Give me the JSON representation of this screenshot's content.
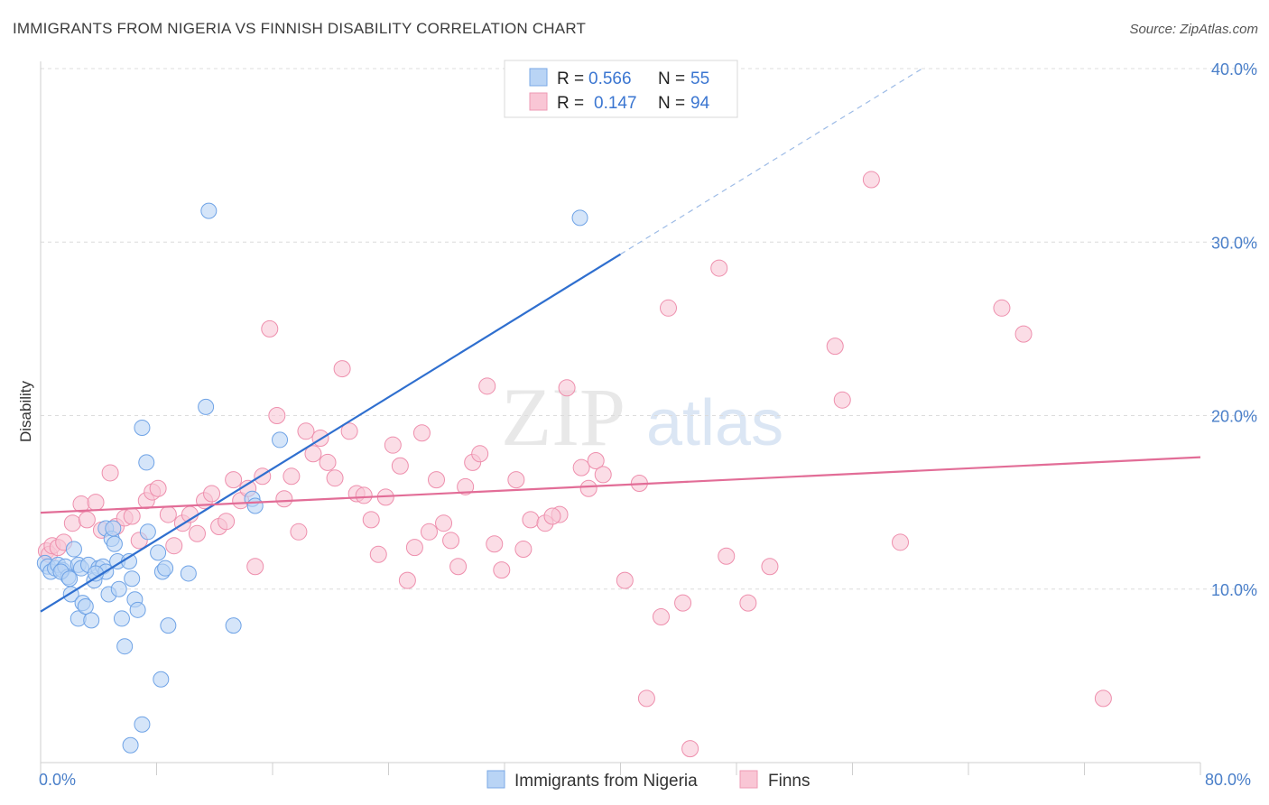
{
  "header": {
    "title": "IMMIGRANTS FROM NIGERIA VS FINNISH DISABILITY CORRELATION CHART",
    "source": "Source: ZipAtlas.com"
  },
  "watermark": {
    "part1": "ZIP",
    "part2": "atlas"
  },
  "legend": {
    "rows": [
      {
        "r_label": "R =",
        "r_value": "0.566",
        "n_label": "N =",
        "n_value": "55",
        "color": "#9ec3f0"
      },
      {
        "r_label": "R =",
        "r_value": "0.147",
        "n_label": "N =",
        "n_value": "94",
        "color": "#f7b8cb"
      }
    ]
  },
  "bottom_legend": [
    {
      "label": "Immigrants from Nigeria",
      "color": "#9ec3f0"
    },
    {
      "label": "Finns",
      "color": "#f7b8cb"
    }
  ],
  "chart_data": {
    "type": "scatter",
    "title": "IMMIGRANTS FROM NIGERIA VS FINNISH DISABILITY CORRELATION CHART",
    "xlabel": "",
    "ylabel": "Disability",
    "xlim": [
      0,
      80
    ],
    "ylim": [
      0,
      40
    ],
    "x_tick_labels": [
      "0.0%",
      "80.0%"
    ],
    "y_ticks": [
      10,
      20,
      30,
      40
    ],
    "y_tick_labels": [
      "10.0%",
      "20.0%",
      "30.0%",
      "40.0%"
    ],
    "grid": true,
    "series": [
      {
        "name": "Immigrants from Nigeria",
        "color": "#6fa3e6",
        "fill": "#b9d4f5",
        "trend": {
          "x0": 0,
          "y0": 8.7,
          "x1": 40,
          "y1": 29.3,
          "dash_to_x": 61,
          "dash_to_y": 40.1
        },
        "points": [
          [
            0.3,
            11.5
          ],
          [
            0.5,
            11.3
          ],
          [
            0.7,
            11.0
          ],
          [
            1.0,
            11.2
          ],
          [
            1.2,
            11.4
          ],
          [
            1.5,
            11.1
          ],
          [
            1.7,
            11.3
          ],
          [
            1.9,
            10.7
          ],
          [
            2.1,
            9.7
          ],
          [
            2.3,
            12.3
          ],
          [
            2.6,
            11.4
          ],
          [
            2.8,
            11.2
          ],
          [
            2.6,
            8.3
          ],
          [
            2.9,
            9.2
          ],
          [
            3.1,
            9.0
          ],
          [
            3.3,
            11.4
          ],
          [
            3.5,
            8.2
          ],
          [
            3.7,
            10.5
          ],
          [
            4.0,
            11.2
          ],
          [
            4.3,
            11.3
          ],
          [
            4.5,
            11.0
          ],
          [
            4.7,
            9.7
          ],
          [
            4.5,
            13.5
          ],
          [
            4.9,
            12.9
          ],
          [
            5.1,
            12.6
          ],
          [
            5.3,
            11.6
          ],
          [
            5.4,
            10.0
          ],
          [
            5.6,
            8.3
          ],
          [
            5.8,
            6.7
          ],
          [
            6.1,
            11.6
          ],
          [
            6.3,
            10.6
          ],
          [
            6.5,
            9.4
          ],
          [
            6.7,
            8.8
          ],
          [
            7.0,
            19.3
          ],
          [
            7.3,
            17.3
          ],
          [
            7.4,
            13.3
          ],
          [
            8.1,
            12.1
          ],
          [
            8.4,
            11.0
          ],
          [
            8.6,
            11.2
          ],
          [
            8.8,
            7.9
          ],
          [
            8.3,
            4.8
          ],
          [
            7.0,
            2.2
          ],
          [
            6.2,
            1.0
          ],
          [
            10.2,
            10.9
          ],
          [
            11.4,
            20.5
          ],
          [
            11.6,
            31.8
          ],
          [
            13.3,
            7.9
          ],
          [
            14.6,
            15.2
          ],
          [
            14.8,
            14.8
          ],
          [
            16.5,
            18.6
          ],
          [
            37.2,
            31.4
          ],
          [
            1.4,
            11.0
          ],
          [
            2.0,
            10.6
          ],
          [
            3.8,
            10.9
          ],
          [
            5.0,
            13.5
          ]
        ]
      },
      {
        "name": "Finns",
        "color": "#ee8fad",
        "fill": "#f9c6d5",
        "trend": {
          "x0": 0,
          "y0": 14.4,
          "x1": 80,
          "y1": 17.6
        },
        "points": [
          [
            0.4,
            12.2
          ],
          [
            0.6,
            12.0
          ],
          [
            0.8,
            12.5
          ],
          [
            1.2,
            12.4
          ],
          [
            1.6,
            12.7
          ],
          [
            2.2,
            13.8
          ],
          [
            2.8,
            14.9
          ],
          [
            3.2,
            14.0
          ],
          [
            3.8,
            15.0
          ],
          [
            4.2,
            13.4
          ],
          [
            4.8,
            16.7
          ],
          [
            5.2,
            13.6
          ],
          [
            5.8,
            14.1
          ],
          [
            6.3,
            14.2
          ],
          [
            6.8,
            12.8
          ],
          [
            7.3,
            15.1
          ],
          [
            7.7,
            15.6
          ],
          [
            8.1,
            15.8
          ],
          [
            8.8,
            14.3
          ],
          [
            9.2,
            12.5
          ],
          [
            9.8,
            13.8
          ],
          [
            10.3,
            14.3
          ],
          [
            10.8,
            13.2
          ],
          [
            11.3,
            15.1
          ],
          [
            11.8,
            15.5
          ],
          [
            12.3,
            13.6
          ],
          [
            12.8,
            13.9
          ],
          [
            13.3,
            16.3
          ],
          [
            13.8,
            15.1
          ],
          [
            14.3,
            15.8
          ],
          [
            14.8,
            11.3
          ],
          [
            15.3,
            16.5
          ],
          [
            15.8,
            25.0
          ],
          [
            16.3,
            20.0
          ],
          [
            16.8,
            15.2
          ],
          [
            17.3,
            16.5
          ],
          [
            17.8,
            13.3
          ],
          [
            18.3,
            19.1
          ],
          [
            18.8,
            17.8
          ],
          [
            19.3,
            18.7
          ],
          [
            19.8,
            17.3
          ],
          [
            20.3,
            16.4
          ],
          [
            20.8,
            22.7
          ],
          [
            21.3,
            19.1
          ],
          [
            21.8,
            15.5
          ],
          [
            22.3,
            15.4
          ],
          [
            22.8,
            14.0
          ],
          [
            23.3,
            12.0
          ],
          [
            23.8,
            15.3
          ],
          [
            24.3,
            18.3
          ],
          [
            24.8,
            17.1
          ],
          [
            25.3,
            10.5
          ],
          [
            25.8,
            12.4
          ],
          [
            26.3,
            19.0
          ],
          [
            26.8,
            13.3
          ],
          [
            27.3,
            16.3
          ],
          [
            27.8,
            13.8
          ],
          [
            28.3,
            12.8
          ],
          [
            28.8,
            11.3
          ],
          [
            29.3,
            15.9
          ],
          [
            29.8,
            17.3
          ],
          [
            30.3,
            17.8
          ],
          [
            30.8,
            21.7
          ],
          [
            31.3,
            12.6
          ],
          [
            31.8,
            11.1
          ],
          [
            32.8,
            16.3
          ],
          [
            33.3,
            12.3
          ],
          [
            33.8,
            14.0
          ],
          [
            34.8,
            13.8
          ],
          [
            35.8,
            14.3
          ],
          [
            36.3,
            21.6
          ],
          [
            37.3,
            17.0
          ],
          [
            37.8,
            15.8
          ],
          [
            38.3,
            17.4
          ],
          [
            38.8,
            16.6
          ],
          [
            40.3,
            10.5
          ],
          [
            41.3,
            16.1
          ],
          [
            42.8,
            8.4
          ],
          [
            43.3,
            26.2
          ],
          [
            44.3,
            9.2
          ],
          [
            46.8,
            28.5
          ],
          [
            47.3,
            11.9
          ],
          [
            48.8,
            9.2
          ],
          [
            50.3,
            11.3
          ],
          [
            54.8,
            24.0
          ],
          [
            55.3,
            20.9
          ],
          [
            57.3,
            33.6
          ],
          [
            59.3,
            12.7
          ],
          [
            66.3,
            26.2
          ],
          [
            67.8,
            24.7
          ],
          [
            73.3,
            3.7
          ],
          [
            41.8,
            3.7
          ],
          [
            44.8,
            0.8
          ],
          [
            35.3,
            14.2
          ]
        ]
      }
    ]
  }
}
